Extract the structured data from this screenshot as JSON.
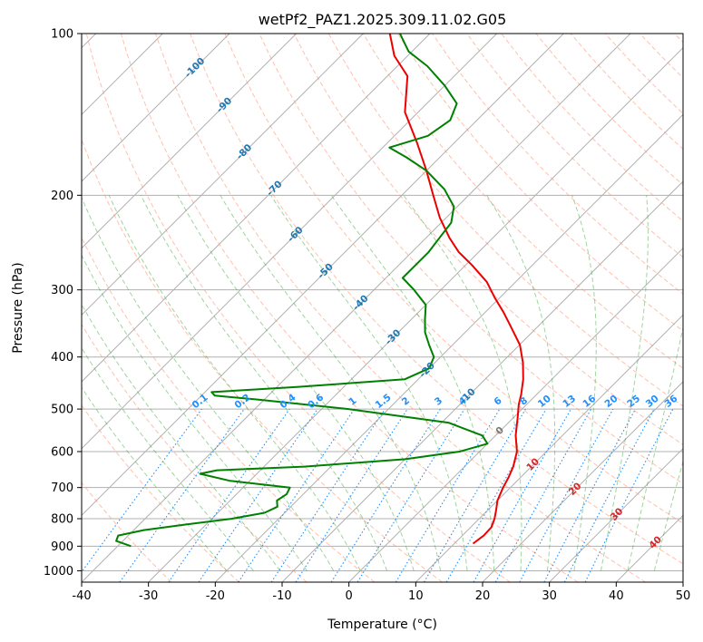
{
  "chart_data": {
    "type": "line",
    "title": "wetPf2_PAZ1.2025.309.11.02.G05",
    "xlabel": "Temperature (°C)",
    "ylabel": "Pressure (hPa)",
    "xlim": [
      -40,
      50
    ],
    "ylim": [
      1050,
      100
    ],
    "y_scale": "log",
    "skew": true,
    "grid": true,
    "x_ticks": [
      -40,
      -30,
      -20,
      -10,
      0,
      10,
      20,
      30,
      40,
      50
    ],
    "y_ticks": [
      100,
      200,
      300,
      400,
      500,
      600,
      700,
      800,
      900,
      1000
    ],
    "series": [
      {
        "color": "#ee0000",
        "pressure": [
          890,
          860,
          830,
          800,
          770,
          740,
          700,
          670,
          640,
          600,
          560,
          520,
          490,
          470,
          440,
          410,
          380,
          350,
          330,
          310,
          290,
          270,
          255,
          240,
          220,
          200,
          180,
          160,
          140,
          120,
          110,
          100
        ],
        "temperature": [
          12.8,
          13.2,
          13.1,
          12.3,
          11.2,
          10.0,
          8.9,
          8.2,
          7.3,
          5.6,
          3.0,
          0.7,
          -1.2,
          -2.3,
          -4.3,
          -6.8,
          -9.9,
          -14.2,
          -17.3,
          -20.8,
          -24.3,
          -29.0,
          -33.0,
          -36.5,
          -41.0,
          -45.3,
          -50.0,
          -55.5,
          -62.0,
          -67.0,
          -72.0,
          -76.0
        ]
      },
      {
        "color": "#008000",
        "pressure": [
          900,
          880,
          860,
          840,
          820,
          800,
          780,
          760,
          740,
          720,
          700,
          680,
          660,
          650,
          640,
          620,
          600,
          580,
          560,
          530,
          500,
          480,
          472,
          465,
          455,
          440,
          420,
          400,
          380,
          360,
          340,
          320,
          300,
          285,
          270,
          255,
          240,
          225,
          210,
          195,
          180,
          170,
          163,
          155,
          145,
          135,
          125,
          115,
          108,
          100
        ],
        "temperature": [
          -38.0,
          -41.0,
          -41.5,
          -38.5,
          -33.0,
          -27.0,
          -23.0,
          -22.0,
          -23.0,
          -22.5,
          -23.0,
          -33.0,
          -38.5,
          -36.5,
          -24.0,
          -10.0,
          -3.0,
          0.0,
          -2.0,
          -9.0,
          -26.0,
          -41.0,
          -48.0,
          -49.0,
          -37.0,
          -22.0,
          -20.0,
          -21.0,
          -23.5,
          -26.0,
          -28.0,
          -30.0,
          -34.0,
          -37.5,
          -37.5,
          -37.5,
          -38.0,
          -38.5,
          -40.5,
          -44.5,
          -50.0,
          -55.0,
          -59.0,
          -55.0,
          -54.0,
          -55.5,
          -60.0,
          -65.5,
          -70.5,
          -74.5
        ]
      }
    ],
    "isotherm_labels": [
      "-100",
      "-90",
      "-80",
      "-70",
      "-60",
      "-50",
      "-40",
      "-30",
      "-20",
      "-10",
      "0",
      "10",
      "20",
      "30",
      "40"
    ],
    "mixing_ratio_labels": [
      "0.1",
      "0.2",
      "0.4",
      "0.6",
      "1",
      "1.5",
      "2",
      "3",
      "4",
      "6",
      "8",
      "10",
      "13",
      "16",
      "20",
      "25",
      "30",
      "36"
    ],
    "colors": {
      "isotherm_cold": "#1f77b4",
      "isotherm_zero": "#777777",
      "isotherm_warm": "#d62728",
      "mixing_ratio": "#1e90ff",
      "dry_adiabat": "#ff8c69",
      "moist_adiabat": "#2ca02c",
      "grid": "#b0b0b0"
    }
  }
}
